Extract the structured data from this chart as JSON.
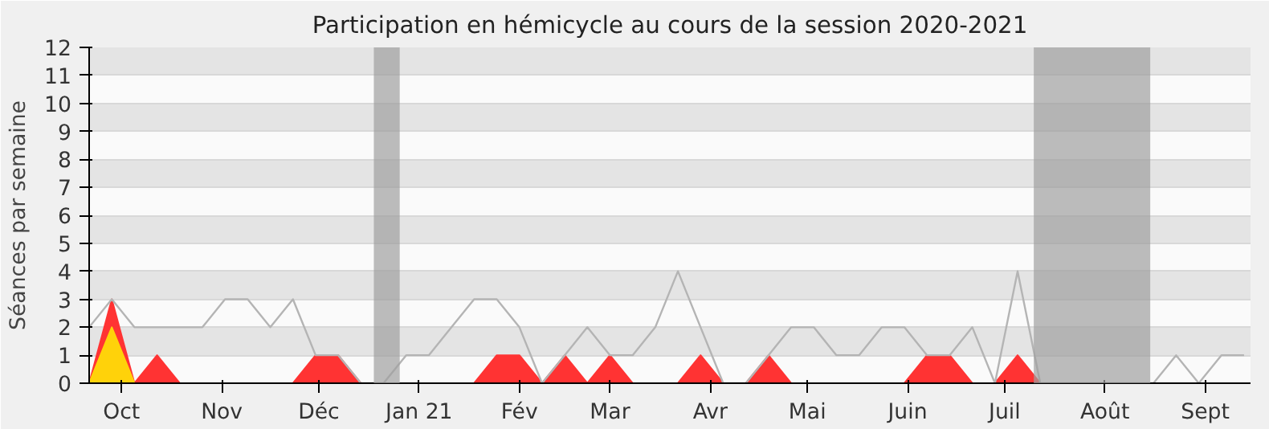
{
  "chart_data": {
    "type": "line",
    "title": "Participation en hémicycle au cours de la session 2020-2021",
    "ylabel": "Séances par semaine",
    "x": [
      "2020-09-21",
      "2020-09-28",
      "2020-10-05",
      "2020-10-12",
      "2020-10-19",
      "2020-10-26",
      "2020-11-02",
      "2020-11-09",
      "2020-11-16",
      "2020-11-23",
      "2020-11-30",
      "2020-12-07",
      "2020-12-14",
      "2020-12-21",
      "2020-12-28",
      "2021-01-04",
      "2021-01-11",
      "2021-01-18",
      "2021-01-25",
      "2021-02-01",
      "2021-02-08",
      "2021-02-15",
      "2021-02-22",
      "2021-03-01",
      "2021-03-08",
      "2021-03-15",
      "2021-03-22",
      "2021-03-29",
      "2021-04-05",
      "2021-04-12",
      "2021-04-19",
      "2021-04-26",
      "2021-05-03",
      "2021-05-10",
      "2021-05-17",
      "2021-05-24",
      "2021-05-31",
      "2021-06-07",
      "2021-06-14",
      "2021-06-21",
      "2021-06-28",
      "2021-07-05",
      "2021-07-12",
      "2021-07-19",
      "2021-07-26",
      "2021-08-02",
      "2021-08-09",
      "2021-08-16",
      "2021-08-23",
      "2021-08-30",
      "2021-09-06",
      "2021-09-13"
    ],
    "series": [
      {
        "color": "#b4b4b4",
        "values": [
          2,
          3,
          2,
          2,
          2,
          2,
          3,
          3,
          2,
          3,
          1,
          1,
          0,
          0,
          1,
          1,
          2,
          3,
          3,
          2,
          0,
          1,
          2,
          1,
          1,
          2,
          4,
          2,
          0,
          0,
          1,
          2,
          2,
          1,
          1,
          2,
          2,
          1,
          1,
          2,
          0,
          4,
          0,
          0,
          0,
          0,
          0,
          0,
          1,
          0,
          1,
          1
        ]
      },
      {
        "type": "area",
        "color": "#ff3333",
        "values": [
          0,
          3,
          0,
          1,
          0,
          0,
          0,
          0,
          0,
          0,
          1,
          1,
          0,
          0,
          0,
          0,
          0,
          0,
          1,
          1,
          0,
          1,
          0,
          1,
          0,
          0,
          0,
          1,
          0,
          0,
          1,
          0,
          0,
          0,
          0,
          0,
          0,
          1,
          1,
          0,
          0,
          1,
          0,
          0,
          0,
          0,
          0,
          0,
          0,
          0,
          0,
          0
        ]
      },
      {
        "type": "area",
        "color": "#ffd20a",
        "values": [
          0,
          2,
          0,
          0,
          0,
          0,
          0,
          0,
          0,
          0,
          0,
          0,
          0,
          0,
          0,
          0,
          0,
          0,
          0,
          0,
          0,
          0,
          0,
          0,
          0,
          0,
          0,
          0,
          0,
          0,
          0,
          0,
          0,
          0,
          0,
          0,
          0,
          0,
          0,
          0,
          0,
          0,
          0,
          0,
          0,
          0,
          0,
          0,
          0,
          0,
          0,
          0
        ]
      }
    ],
    "xlim": [
      "2020-09-21",
      "2021-09-15"
    ],
    "xticks": [
      {
        "value": "2020-10-01",
        "label": "Oct"
      },
      {
        "value": "2020-11-01",
        "label": "Nov"
      },
      {
        "value": "2020-12-01",
        "label": "Déc"
      },
      {
        "value": "2021-01-01",
        "label": "Jan 21"
      },
      {
        "value": "2021-02-01",
        "label": "Fév"
      },
      {
        "value": "2021-03-01",
        "label": "Mar"
      },
      {
        "value": "2021-04-01",
        "label": "Avr"
      },
      {
        "value": "2021-05-01",
        "label": "Mai"
      },
      {
        "value": "2021-06-01",
        "label": "Juin"
      },
      {
        "value": "2021-07-01",
        "label": "Juil"
      },
      {
        "value": "2021-08-01",
        "label": "Août"
      },
      {
        "value": "2021-09-01",
        "label": "Sept"
      }
    ],
    "ylim": [
      0,
      12
    ],
    "yticks": [
      0,
      1,
      2,
      3,
      4,
      5,
      6,
      7,
      8,
      9,
      10,
      11,
      12
    ],
    "bands": [
      {
        "axis": "x",
        "from": "2020-12-18",
        "to": "2020-12-26",
        "color": "#a0a0a0"
      },
      {
        "axis": "x",
        "from": "2021-07-10",
        "to": "2021-08-15",
        "color": "#a0a0a0"
      }
    ],
    "grid": "y"
  }
}
